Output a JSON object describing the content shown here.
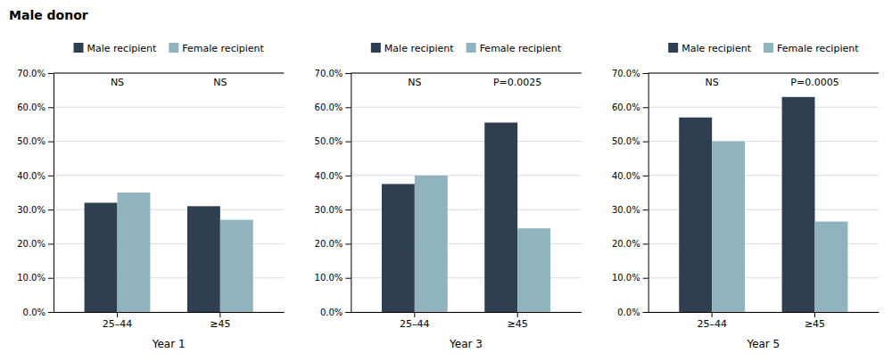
{
  "chart_data": [
    {
      "type": "bar",
      "title": "Male donor",
      "xlabel": "Year 1",
      "categories": [
        "25–44",
        "≥45"
      ],
      "series": [
        {
          "name": "Male recipient",
          "color": "#2e4050",
          "values": [
            0.32,
            0.31
          ]
        },
        {
          "name": "Female recipient",
          "color": "#8fb4be",
          "values": [
            0.35,
            0.27
          ]
        }
      ],
      "annotations": [
        {
          "text": "NS",
          "x": "25–44"
        },
        {
          "text": "NS",
          "x": "≥45"
        }
      ],
      "ylim": [
        0.0,
        0.7
      ],
      "yticks": [
        {
          "value": 0.0,
          "label": "0.0%"
        },
        {
          "value": 0.1,
          "label": "10.0%"
        },
        {
          "value": 0.2,
          "label": "20.0%"
        },
        {
          "value": 0.3,
          "label": "30.0%"
        },
        {
          "value": 0.4,
          "label": "40.0%"
        },
        {
          "value": 0.5,
          "label": "50.0%"
        },
        {
          "value": 0.6,
          "label": "60.0%"
        },
        {
          "value": 0.7,
          "label": "70.0%"
        }
      ],
      "grid": true,
      "legend": "top"
    },
    {
      "type": "bar",
      "xlabel": "Year 3",
      "categories": [
        "25–44",
        "≥45"
      ],
      "series": [
        {
          "name": "Male recipient",
          "color": "#2e4050",
          "values": [
            0.375,
            0.555
          ]
        },
        {
          "name": "Female recipient",
          "color": "#8fb4be",
          "values": [
            0.4,
            0.245
          ]
        }
      ],
      "annotations": [
        {
          "text": "NS",
          "x": "25–44"
        },
        {
          "text": "P=0.0025",
          "x": "≥45"
        }
      ],
      "ylim": [
        0.0,
        0.7
      ],
      "yticks": [
        {
          "value": 0.0,
          "label": "0.0%"
        },
        {
          "value": 0.1,
          "label": "10.0%"
        },
        {
          "value": 0.2,
          "label": "20.0%"
        },
        {
          "value": 0.3,
          "label": "30.0%"
        },
        {
          "value": 0.4,
          "label": "40.0%"
        },
        {
          "value": 0.5,
          "label": "50.0%"
        },
        {
          "value": 0.6,
          "label": "60.0%"
        },
        {
          "value": 0.7,
          "label": "70.0%"
        }
      ],
      "grid": true,
      "legend": "top"
    },
    {
      "type": "bar",
      "xlabel": "Year 5",
      "categories": [
        "25–44",
        "≥45"
      ],
      "series": [
        {
          "name": "Male recipient",
          "color": "#2e4050",
          "values": [
            0.57,
            0.63
          ]
        },
        {
          "name": "Female recipient",
          "color": "#8fb4be",
          "values": [
            0.5,
            0.265
          ]
        }
      ],
      "annotations": [
        {
          "text": "NS",
          "x": "25–44"
        },
        {
          "text": "P=0.0005",
          "x": "≥45"
        }
      ],
      "ylim": [
        0.0,
        0.7
      ],
      "yticks": [
        {
          "value": 0.0,
          "label": "0.0%"
        },
        {
          "value": 0.1,
          "label": "10.0%"
        },
        {
          "value": 0.2,
          "label": "20.0%"
        },
        {
          "value": 0.3,
          "label": "30.0%"
        },
        {
          "value": 0.4,
          "label": "40.0%"
        },
        {
          "value": 0.5,
          "label": "50.0%"
        },
        {
          "value": 0.6,
          "label": "60.0%"
        },
        {
          "value": 0.7,
          "label": "70.0%"
        }
      ],
      "grid": true,
      "legend": "top"
    }
  ]
}
